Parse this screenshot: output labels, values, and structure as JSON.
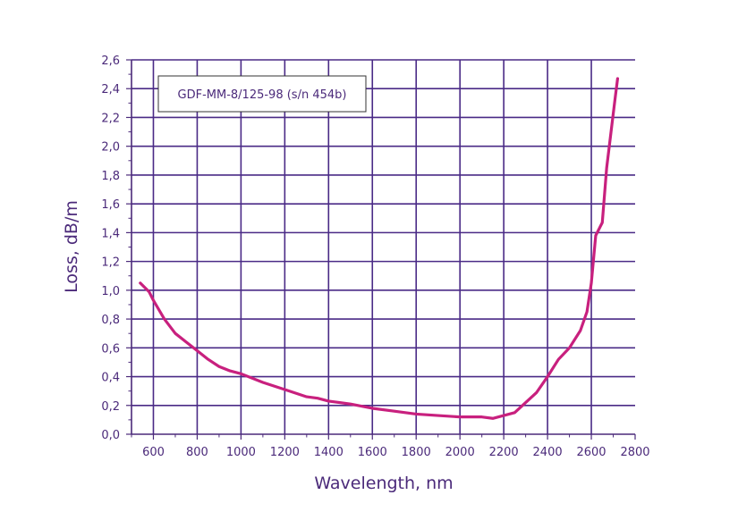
{
  "chart_data": {
    "type": "line",
    "title": "",
    "xlabel": "Wavelength, nm",
    "ylabel": "Loss, dB/m",
    "xlim": [
      500,
      2800
    ],
    "ylim": [
      0,
      2.6
    ],
    "grid": true,
    "legend_position": "top-left",
    "x_ticks": [
      600,
      800,
      1000,
      1200,
      1400,
      1600,
      1800,
      2000,
      2200,
      2400,
      2600,
      2800
    ],
    "x_tick_labels": [
      "600",
      "800",
      "1000",
      "1200",
      "1400",
      "1600",
      "1800",
      "2000",
      "2200",
      "2400",
      "2600",
      "2800"
    ],
    "y_ticks": [
      0,
      0.2,
      0.4,
      0.6,
      0.8,
      1.0,
      1.2,
      1.4,
      1.6,
      1.8,
      2.0,
      2.2,
      2.4,
      2.6
    ],
    "y_tick_labels": [
      "0,0",
      "0,2",
      "0,4",
      "0,6",
      "0,8",
      "1,0",
      "1,2",
      "1,4",
      "1,6",
      "1,8",
      "2,0",
      "2,2",
      "2,4",
      "2,6"
    ],
    "series": [
      {
        "name": "GDF-MM-8/125-98 (s/n 454b)",
        "color": "#c8207e",
        "x": [
          540,
          580,
          600,
          650,
          700,
          750,
          800,
          850,
          900,
          950,
          1000,
          1100,
          1200,
          1300,
          1350,
          1400,
          1500,
          1600,
          1700,
          1800,
          1900,
          2000,
          2050,
          2100,
          2150,
          2200,
          2250,
          2300,
          2350,
          2400,
          2450,
          2500,
          2550,
          2580,
          2600,
          2620,
          2650,
          2670,
          2690,
          2710,
          2720
        ],
        "y": [
          1.05,
          0.99,
          0.93,
          0.8,
          0.7,
          0.64,
          0.58,
          0.52,
          0.47,
          0.44,
          0.42,
          0.36,
          0.31,
          0.26,
          0.25,
          0.23,
          0.21,
          0.18,
          0.16,
          0.14,
          0.13,
          0.12,
          0.12,
          0.12,
          0.11,
          0.13,
          0.15,
          0.22,
          0.29,
          0.4,
          0.52,
          0.6,
          0.72,
          0.85,
          1.05,
          1.38,
          1.47,
          1.85,
          2.1,
          2.35,
          2.47
        ]
      }
    ]
  }
}
